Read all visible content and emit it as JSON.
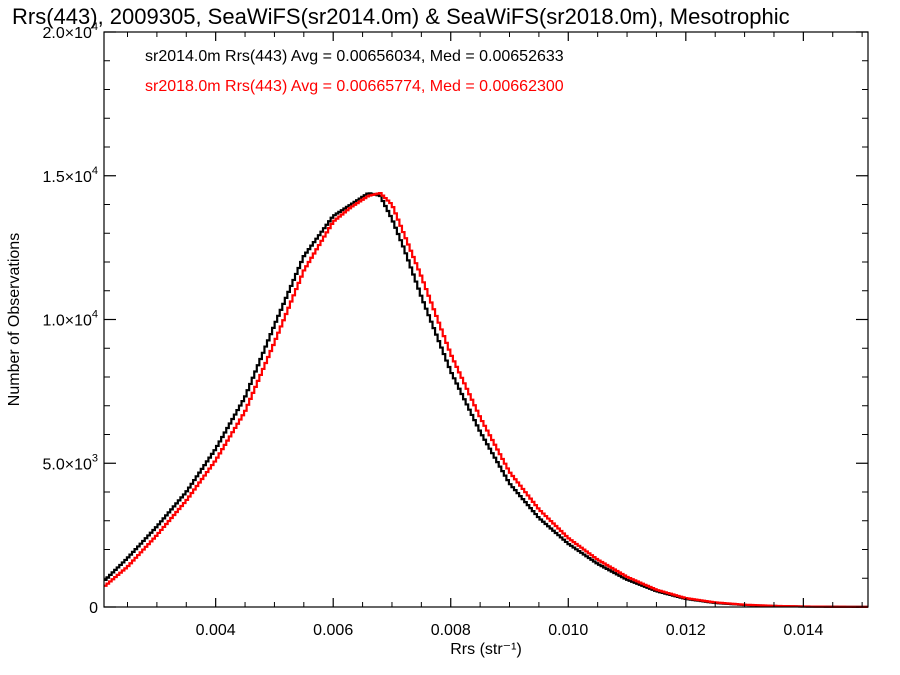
{
  "chart_data": {
    "type": "line",
    "title": "Rrs(443), 2009305, SeaWiFS(sr2014.0m) & SeaWiFS(sr2018.0m), Mesotrophic",
    "xlabel": "Rrs (str⁻¹)",
    "ylabel": "Number of Observations",
    "xlim": [
      0.0021,
      0.0151
    ],
    "ylim": [
      0,
      20000
    ],
    "grid": false,
    "legend_placement": "top-left",
    "x_ticks": [
      {
        "value": 0.004,
        "label": "0.004"
      },
      {
        "value": 0.006,
        "label": "0.006"
      },
      {
        "value": 0.008,
        "label": "0.008"
      },
      {
        "value": 0.01,
        "label": "0.010"
      },
      {
        "value": 0.012,
        "label": "0.012"
      },
      {
        "value": 0.014,
        "label": "0.014"
      }
    ],
    "y_ticks": [
      {
        "value": 0,
        "label": "0"
      },
      {
        "value": 5000,
        "label": "5.0×10",
        "exp": "3"
      },
      {
        "value": 10000,
        "label": "1.0×10",
        "exp": "4"
      },
      {
        "value": 15000,
        "label": "1.5×10",
        "exp": "4"
      },
      {
        "value": 20000,
        "label": "2.0×10",
        "exp": "4"
      }
    ],
    "legend": [
      {
        "text": "sr2014.0m Rrs(443) Avg = 0.00656034, Med = 0.00652633",
        "color": "#000000"
      },
      {
        "text": "sr2018.0m Rrs(443) Avg = 0.00665774, Med = 0.00662300",
        "color": "#ff0000"
      }
    ],
    "series": [
      {
        "color": "#000000",
        "x": [
          0.0021,
          0.0025,
          0.003,
          0.0035,
          0.004,
          0.0045,
          0.005,
          0.0055,
          0.006,
          0.0063,
          0.0066,
          0.0068,
          0.007,
          0.0072,
          0.0075,
          0.008,
          0.0085,
          0.009,
          0.0095,
          0.01,
          0.0105,
          0.011,
          0.0115,
          0.012,
          0.0125,
          0.013,
          0.0135,
          0.014,
          0.0145,
          0.0151
        ],
        "y": [
          900,
          1700,
          2800,
          4000,
          5500,
          7300,
          9800,
          12200,
          13600,
          14000,
          14400,
          14300,
          13500,
          12500,
          10800,
          8200,
          6100,
          4300,
          3100,
          2200,
          1500,
          950,
          550,
          280,
          140,
          70,
          35,
          15,
          8,
          4
        ]
      },
      {
        "color": "#ff0000",
        "x": [
          0.0021,
          0.0025,
          0.003,
          0.0035,
          0.004,
          0.0045,
          0.005,
          0.0055,
          0.006,
          0.0063,
          0.0066,
          0.0068,
          0.007,
          0.0072,
          0.0075,
          0.008,
          0.0085,
          0.009,
          0.0095,
          0.01,
          0.0105,
          0.011,
          0.0115,
          0.012,
          0.0125,
          0.013,
          0.0135,
          0.014,
          0.0145,
          0.0151
        ],
        "y": [
          700,
          1400,
          2500,
          3700,
          5100,
          6800,
          9200,
          11700,
          13400,
          13900,
          14300,
          14400,
          14000,
          13000,
          11500,
          8800,
          6600,
          4700,
          3400,
          2400,
          1650,
          1050,
          600,
          310,
          160,
          80,
          40,
          18,
          9,
          5
        ]
      }
    ]
  }
}
